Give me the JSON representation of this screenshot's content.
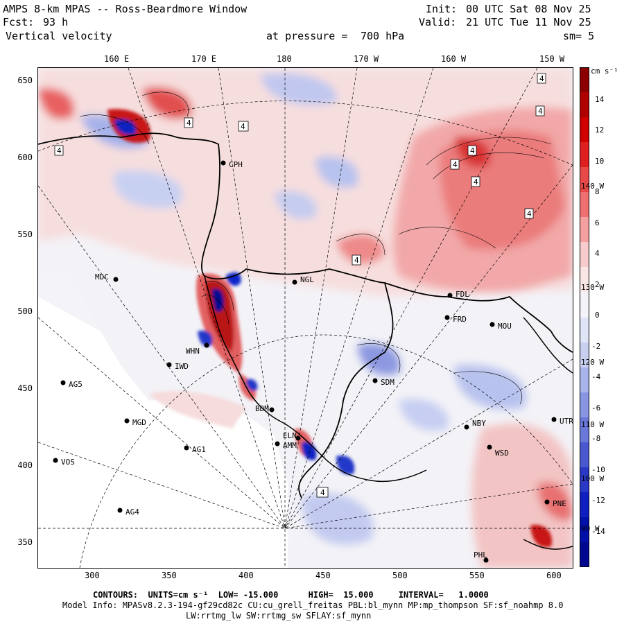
{
  "header": {
    "model_title": "AMPS 8-km MPAS -- Ross-Beardmore Window",
    "fcst_label": "Fcst:",
    "fcst_hours": "93 h",
    "field_name": "Vertical velocity",
    "pressure_label": "at pressure =",
    "pressure_value": "700 hPa",
    "init_label": "Init:",
    "init_time": "00 UTC Sat 08 Nov 25",
    "valid_label": "Valid:",
    "valid_time": "21 UTC Tue 11 Nov 25",
    "smoothing": "sm= 5"
  },
  "top_axis": [
    "160 E",
    "170 E",
    "180",
    "170 W",
    "160 W",
    "150 W"
  ],
  "left_axis": [
    "650",
    "600",
    "550",
    "500",
    "450",
    "400",
    "350"
  ],
  "bottom_axis": [
    "300",
    "350",
    "400",
    "450",
    "500",
    "550",
    "600"
  ],
  "right_meridian_labels": [
    "140 W",
    "130 W",
    "120 W",
    "110 W",
    "100 W",
    "90 W"
  ],
  "colorbar": {
    "units": "cm s⁻¹",
    "labels": [
      "14",
      "12",
      "10",
      "8",
      "6",
      "4",
      "2",
      "0",
      "-2",
      "-4",
      "-6",
      "-8",
      "-10",
      "-12",
      "-14"
    ],
    "colors": [
      "#8b0000",
      "#b00000",
      "#d00000",
      "#e02020",
      "#e84848",
      "#ee7070",
      "#f4a0a0",
      "#f8cccc",
      "#fbe6e6",
      "#f4f4f8",
      "#dfe4f6",
      "#c8d0f0",
      "#a8b4ea",
      "#8896e2",
      "#6a78da",
      "#4a58d0",
      "#2a38c6",
      "#1020c0",
      "#0010a8",
      "#000890"
    ]
  },
  "stations": [
    {
      "name": "MDC"
    },
    {
      "name": "NGL"
    },
    {
      "name": "FDL"
    },
    {
      "name": "FRD"
    },
    {
      "name": "MOU"
    },
    {
      "name": "WHN"
    },
    {
      "name": "IWD"
    },
    {
      "name": "SDM"
    },
    {
      "name": "AG5"
    },
    {
      "name": "BDM"
    },
    {
      "name": "MGD"
    },
    {
      "name": "NBY"
    },
    {
      "name": "UTR"
    },
    {
      "name": "ELN"
    },
    {
      "name": "AMM"
    },
    {
      "name": "AG1"
    },
    {
      "name": "WSD"
    },
    {
      "name": "VOS"
    },
    {
      "name": "PNE"
    },
    {
      "name": "AG4"
    },
    {
      "name": "PHL"
    },
    {
      "name": "CPH"
    }
  ],
  "contour_label": "4",
  "footer": {
    "contours": "CONTOURS:  UNITS=cm s⁻¹  LOW= -15.000      HIGH=  15.000     INTERVAL=   1.0000",
    "model_info": "Model Info: MPASv8.2.3-194-gf29cd82c CU:cu_grell_freitas PBL:bl_mynn MP:mp_thompson SF:sf_noahmp 8.0",
    "model_info2": "LW:rrtmg_lw SW:rrtmg_sw SFLAY:sf_mynn"
  }
}
